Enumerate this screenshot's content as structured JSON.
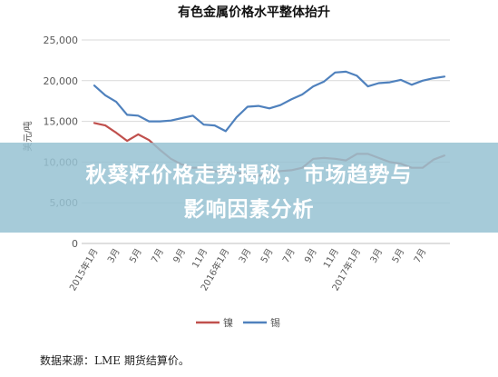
{
  "chart_data": {
    "type": "line",
    "title": "有色金属价格水平整体抬升",
    "ylabel": "美元/吨",
    "ylim": [
      0,
      25000
    ],
    "yticks": [
      "0",
      "5,000",
      "10,000",
      "15,000",
      "20,000",
      "25,000"
    ],
    "ytick_values": [
      0,
      5000,
      10000,
      15000,
      20000,
      25000
    ],
    "x_tick_labels": [
      "2015年1月",
      "3月",
      "5月",
      "7月",
      "9月",
      "11月",
      "2016年1月",
      "3月",
      "5月",
      "7月",
      "9月",
      "11月",
      "2017年1月",
      "3月",
      "5月",
      "7月"
    ],
    "grid": "horizontal",
    "legend_position": "bottom",
    "series": [
      {
        "name": "镍",
        "color": "#c0504d",
        "values": [
          14800,
          14500,
          13600,
          12600,
          13400,
          12700,
          11500,
          10400,
          9700,
          9300,
          9300,
          8900,
          8600,
          8700,
          8500,
          8300,
          8600,
          8900,
          9000,
          9300,
          10400,
          10500,
          10400,
          10200,
          11000,
          11000,
          10500,
          10000,
          9800,
          9300,
          9300,
          10300,
          10800
        ]
      },
      {
        "name": "锡",
        "color": "#4f81bd",
        "values": [
          19400,
          18200,
          17400,
          15800,
          15700,
          15000,
          15000,
          15100,
          15400,
          15700,
          14600,
          14500,
          13800,
          15500,
          16800,
          16900,
          16600,
          17000,
          17700,
          18300,
          19300,
          19900,
          21000,
          21100,
          20600,
          19300,
          19700,
          19800,
          20100,
          19500,
          20000,
          20300,
          20500
        ]
      }
    ]
  },
  "banner": {
    "line1": "秋葵籽价格走势揭秘，市场趋势与",
    "line2": "影响因素分析"
  },
  "source": "数据来源：LME 期货结算价。"
}
